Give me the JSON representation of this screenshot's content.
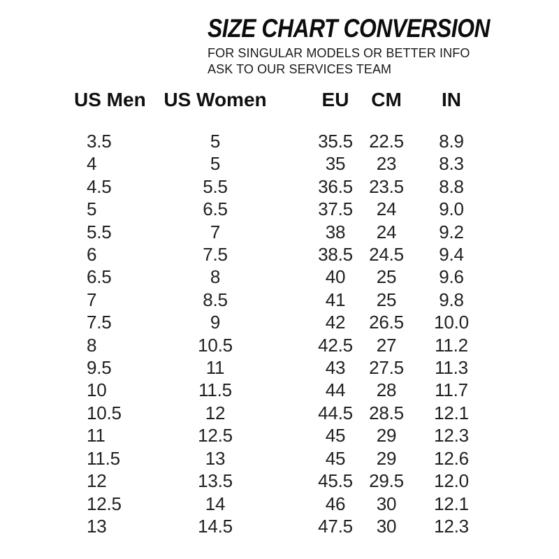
{
  "header": {
    "title": "SIZE CHART CONVERSION",
    "subtitle_line1": "FOR SINGULAR MODELS OR BETTER INFO",
    "subtitle_line2": "ASK TO OUR SERVICES TEAM"
  },
  "chart_data": {
    "type": "table",
    "title": "SIZE CHART CONVERSION",
    "columns": [
      "US Men",
      "US Women",
      "EU",
      "CM",
      "IN"
    ],
    "rows": [
      [
        "3.5",
        "5",
        "35.5",
        "22.5",
        "8.9"
      ],
      [
        "4",
        "5",
        "35",
        "23",
        "8.3"
      ],
      [
        "4.5",
        "5.5",
        "36.5",
        "23.5",
        "8.8"
      ],
      [
        "5",
        "6.5",
        "37.5",
        "24",
        "9.0"
      ],
      [
        "5.5",
        "7",
        "38",
        "24",
        "9.2"
      ],
      [
        "6",
        "7.5",
        "38.5",
        "24.5",
        "9.4"
      ],
      [
        "6.5",
        "8",
        "40",
        "25",
        "9.6"
      ],
      [
        "7",
        "8.5",
        "41",
        "25",
        "9.8"
      ],
      [
        "7.5",
        "9",
        "42",
        "26.5",
        "10.0"
      ],
      [
        "8",
        "10.5",
        "42.5",
        "27",
        "11.2"
      ],
      [
        "9.5",
        "11",
        "43",
        "27.5",
        "11.3"
      ],
      [
        "10",
        "11.5",
        "44",
        "28",
        "11.7"
      ],
      [
        "10.5",
        "12",
        "44.5",
        "28.5",
        "12.1"
      ],
      [
        "11",
        "12.5",
        "45",
        "29",
        "12.3"
      ],
      [
        "11.5",
        "13",
        "45",
        "29",
        "12.6"
      ],
      [
        "12",
        "13.5",
        "45.5",
        "29.5",
        "12.0"
      ],
      [
        "12.5",
        "14",
        "46",
        "30",
        "12.1"
      ],
      [
        "13",
        "14.5",
        "47.5",
        "30",
        "12.3"
      ]
    ],
    "layout": {
      "grid": false,
      "borders": false,
      "first_column_align": "left",
      "other_columns_align": "center"
    }
  },
  "colors": {
    "background": "#ffffff",
    "title_text": "#0c0c0c",
    "body_text": "#212121"
  }
}
